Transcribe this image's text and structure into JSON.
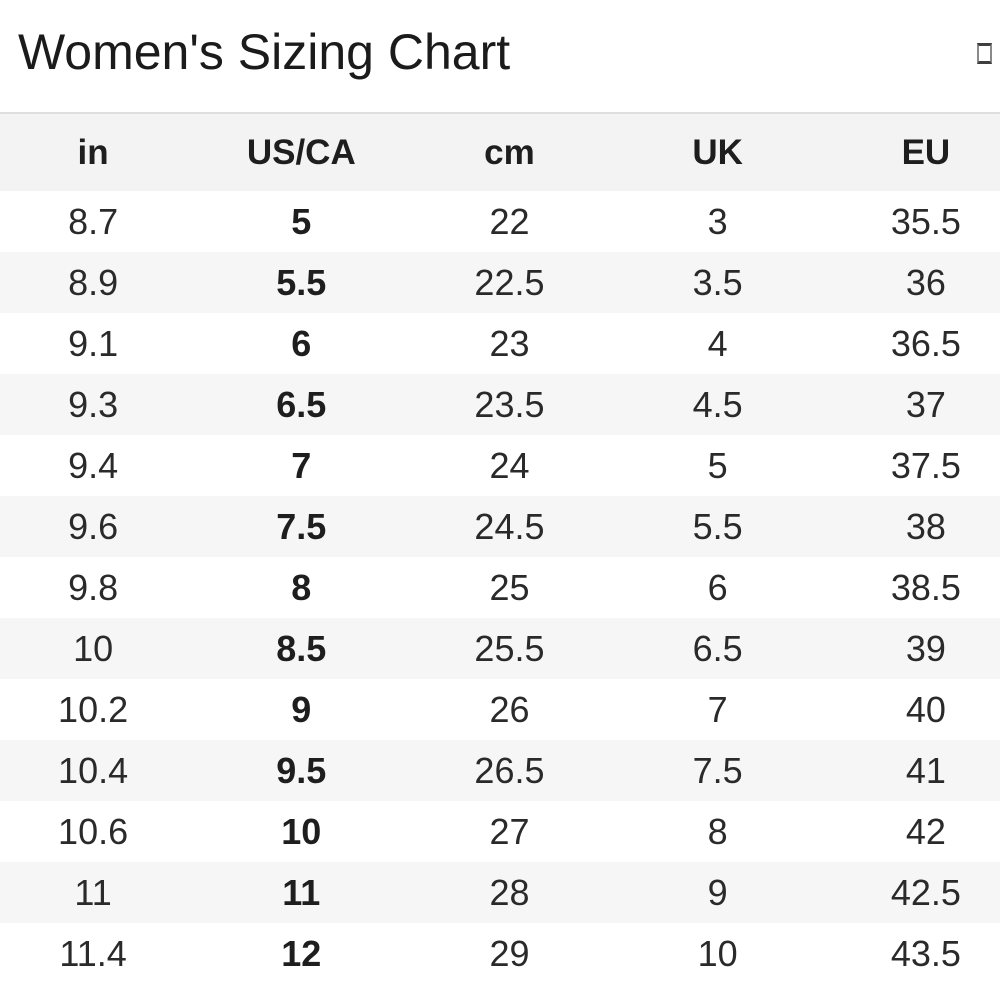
{
  "page": {
    "title": "Women's Sizing Chart"
  },
  "header": {
    "icon": "missing-glyph-box"
  },
  "table": {
    "headers": [
      "in",
      "US/CA",
      "cm",
      "UK",
      "EU"
    ],
    "bold_column": "US/CA",
    "rows": [
      [
        "8.7",
        "5",
        "22",
        "3",
        "35.5"
      ],
      [
        "8.9",
        "5.5",
        "22.5",
        "3.5",
        "36"
      ],
      [
        "9.1",
        "6",
        "23",
        "4",
        "36.5"
      ],
      [
        "9.3",
        "6.5",
        "23.5",
        "4.5",
        "37"
      ],
      [
        "9.4",
        "7",
        "24",
        "5",
        "37.5"
      ],
      [
        "9.6",
        "7.5",
        "24.5",
        "5.5",
        "38"
      ],
      [
        "9.8",
        "8",
        "25",
        "6",
        "38.5"
      ],
      [
        "10",
        "8.5",
        "25.5",
        "6.5",
        "39"
      ],
      [
        "10.2",
        "9",
        "26",
        "7",
        "40"
      ],
      [
        "10.4",
        "9.5",
        "26.5",
        "7.5",
        "41"
      ],
      [
        "10.6",
        "10",
        "27",
        "8",
        "42"
      ],
      [
        "11",
        "11",
        "28",
        "9",
        "42.5"
      ],
      [
        "11.4",
        "12",
        "29",
        "10",
        "43.5"
      ]
    ]
  },
  "colors": {
    "header_bg": "#f3f3f3",
    "stripe_bg": "#f6f6f6",
    "border": "#dedede",
    "text": "#2a2a2a",
    "bold_text": "#1e1e1e",
    "title_text": "#1b1b1b"
  }
}
